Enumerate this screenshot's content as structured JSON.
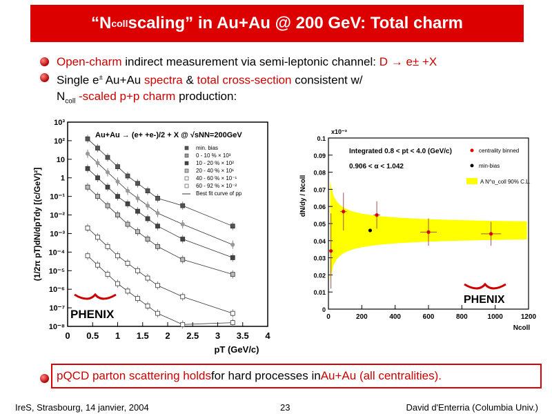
{
  "slide": {
    "title_pre": "“N",
    "title_sub": "coll",
    "title_post": " scaling” in Au+Au @ 200 GeV: Total charm",
    "bullet1": {
      "a": "Open-charm",
      "b": " indirect measurement via semi-leptonic channel: ",
      "c": "D → e± +X"
    },
    "bullet2": {
      "a": "Single e",
      "sup": "±",
      "b": " Au+Au ",
      "c": "spectra",
      "d": " & ",
      "e": "total cross-section",
      "f": " consistent w/"
    },
    "bullet2b": {
      "a": "N",
      "sub": "coll",
      "b": " -scaled p+p charm",
      "c": " production:"
    },
    "conclusion": {
      "a": "pQCD parton scattering holds",
      "b": " for hard processes in ",
      "c": "Au+Au (all centralities)."
    },
    "footer_left": "IreS, Strasbourg, 14 janvier, 2004",
    "footer_page": "23",
    "footer_right": "David d'Enterria (Columbia Univ.)"
  },
  "colors": {
    "title_bg": "#dd0000",
    "accent": "#cc0000",
    "band": "#ffff00"
  },
  "chart_data": [
    {
      "type": "scatter",
      "title": "Au+Au → (e+ +e-)/2 + X @ √sNN=200GeV",
      "xlabel": "pT (GeV/c)",
      "ylabel": "(1/2π pT)dN/dpTdy [(c/GeV)²]",
      "xlim": [
        0,
        4
      ],
      "ylim_log10": [
        -8,
        3
      ],
      "xticks": [
        "0",
        "0.5",
        "1",
        "1.5",
        "2",
        "2.5",
        "3",
        "3.5",
        "4"
      ],
      "yticks": [
        "10³",
        "10²",
        "10",
        "1",
        "10⁻¹",
        "10⁻²",
        "10⁻³",
        "10⁻⁴",
        "10⁻⁵",
        "10⁻⁶",
        "10⁻⁷",
        "10⁻⁸"
      ],
      "x": [
        0.4,
        0.6,
        0.8,
        1.0,
        1.2,
        1.4,
        1.6,
        1.8,
        2.3,
        3.3
      ],
      "legend": [
        "min. bias",
        "0 - 10 % × 10³",
        "10 - 20 % × 10²",
        "20 - 40 % × 10¹",
        "40 - 60 % × 10⁻¹",
        "60 - 92 % × 10⁻²",
        "Best fit curve of pp"
      ],
      "series": [
        {
          "name": "0 - 10 % × 10³",
          "log10_values": [
            2.1,
            1.6,
            1.1,
            0.6,
            0.1,
            -0.3,
            -0.7,
            -1.1,
            -1.5,
            -2.6
          ]
        },
        {
          "name": "10 - 20 % × 10²",
          "log10_values": [
            1.3,
            0.8,
            0.3,
            -0.2,
            -0.7,
            -1.1,
            -1.5,
            -1.9,
            -2.5,
            -3.6
          ]
        },
        {
          "name": "min. bias",
          "log10_values": [
            0.5,
            0.0,
            -0.5,
            -1.0,
            -1.4,
            -1.8,
            -2.2,
            -2.6,
            -3.3,
            -4.3
          ]
        },
        {
          "name": "20 - 40 % × 10¹",
          "log10_values": [
            -0.5,
            -1.0,
            -1.5,
            -2.0,
            -2.5,
            -2.9,
            -3.3,
            -3.7,
            -4.4,
            -5.2
          ]
        },
        {
          "name": "40 - 60 % × 10⁻¹",
          "log10_values": [
            -2.7,
            -3.2,
            -3.7,
            -4.2,
            -4.6,
            -5.0,
            -5.4,
            -5.8,
            -6.4,
            -7.3
          ]
        },
        {
          "name": "60 - 92 % × 10⁻²",
          "log10_values": [
            -4.2,
            -4.7,
            -5.2,
            -5.7,
            -6.1,
            -6.5,
            -6.9,
            -7.3,
            -7.9,
            -7.8
          ]
        }
      ],
      "logo": "PHENIX"
    },
    {
      "type": "scatter",
      "annotation1": "Integrated 0.8 < pt < 4.0 (GeV/c)",
      "annotation2": "0.906 < α < 1.042",
      "xlabel": "Ncoll",
      "ylabel": "dN/dy / Ncoll",
      "yexp": "x10⁻³",
      "xlim": [
        0,
        1200
      ],
      "ylim": [
        0,
        0.1
      ],
      "xticks": [
        "0",
        "200",
        "400",
        "600",
        "800",
        "1000",
        "1200"
      ],
      "yticks": [
        "0",
        "0.01",
        "0.02",
        "0.03",
        "0.04",
        "0.05",
        "0.06",
        "0.07",
        "0.08",
        "0.09",
        "0.1"
      ],
      "legend": [
        "centrality binned",
        "min-bias",
        "A N^α_coll 90% C.L."
      ],
      "series": [
        {
          "name": "centrality binned",
          "points": [
            [
              15,
              0.034
            ],
            [
              90,
              0.057
            ],
            [
              290,
              0.055
            ],
            [
              600,
              0.045
            ],
            [
              975,
              0.044
            ]
          ]
        },
        {
          "name": "min-bias",
          "points": [
            [
              250,
              0.046
            ]
          ]
        }
      ],
      "logo": "PHENIX"
    }
  ]
}
